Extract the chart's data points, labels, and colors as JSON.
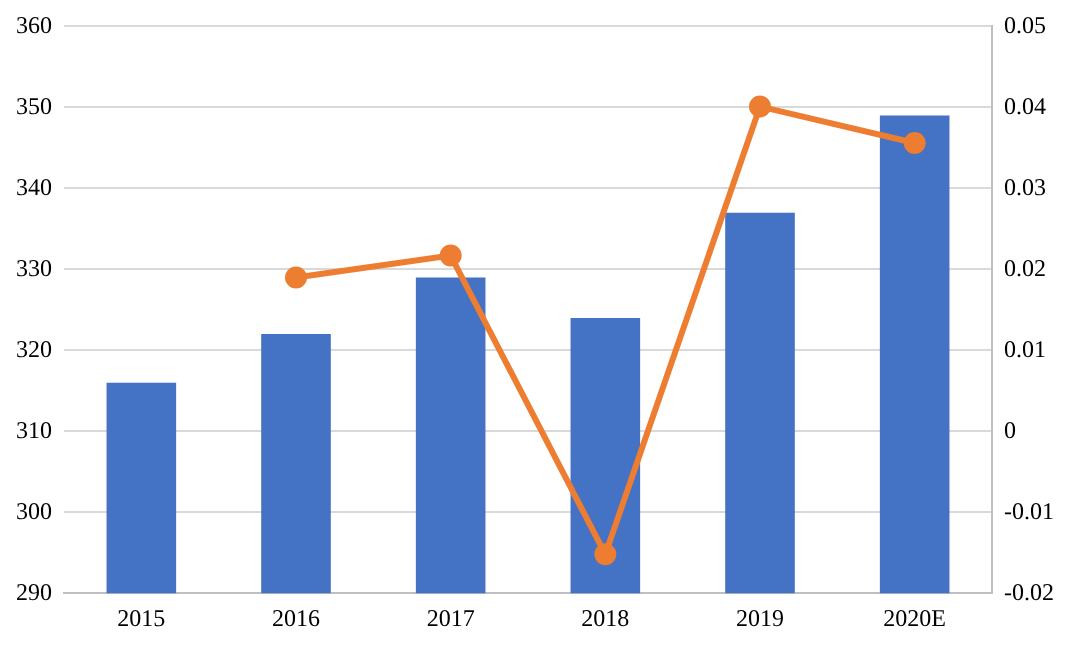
{
  "chart_data": {
    "type": "bar",
    "categories": [
      "2015",
      "2016",
      "2017",
      "2018",
      "2019",
      "2020E"
    ],
    "series": [
      {
        "color": "#4472c4",
        "values": [
          316,
          322,
          329,
          324,
          337,
          349
        ]
      },
      {
        "type": "line",
        "axis": "y2",
        "color": "#ed7d31",
        "marker": "circle",
        "values": [
          null,
          0.019,
          0.0217,
          -0.0152,
          0.0401,
          0.0356
        ]
      }
    ],
    "ylim": [
      290,
      360
    ],
    "yticks": [
      290,
      300,
      310,
      320,
      330,
      340,
      350,
      360
    ],
    "y2lim": [
      -0.02,
      0.05
    ],
    "y2ticks": [
      -0.02,
      -0.01,
      0,
      0.01,
      0.02,
      0.03,
      0.04,
      0.05
    ],
    "grid": "y",
    "legend": false
  }
}
